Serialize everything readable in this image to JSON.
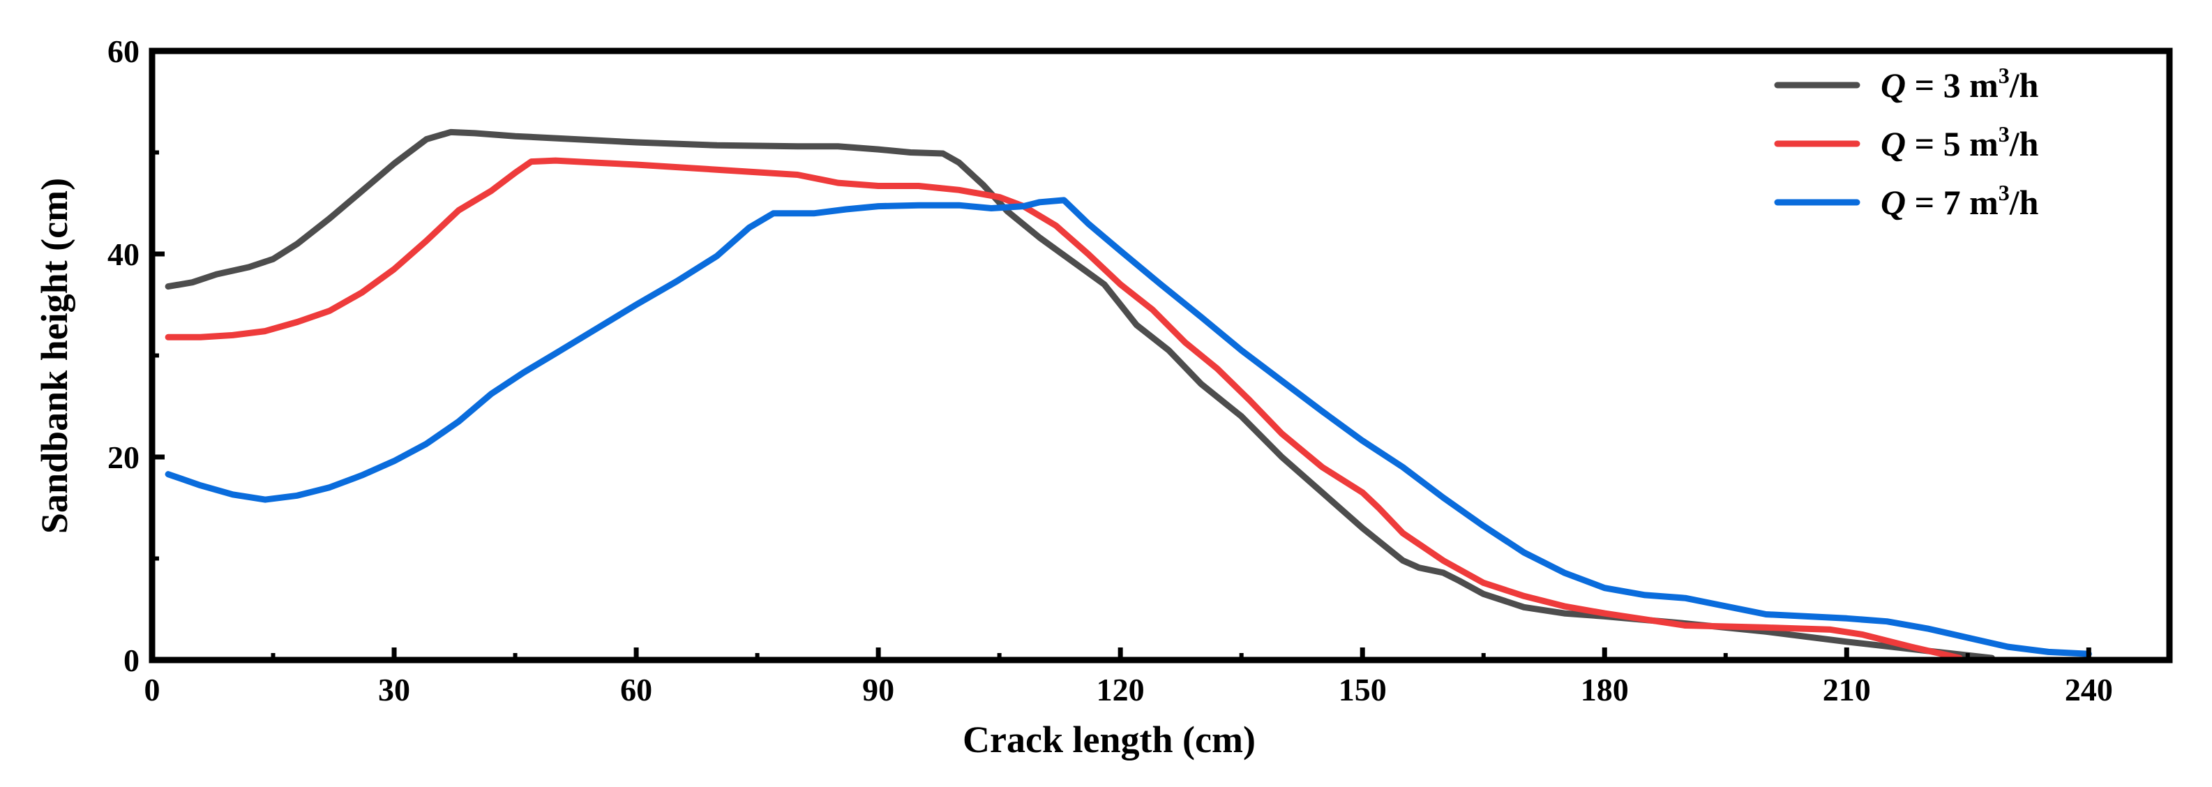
{
  "chart_data": {
    "type": "line",
    "title": "",
    "xlabel": "Crack length (cm)",
    "ylabel": "Sandbank height (cm)",
    "xlim": [
      0,
      250
    ],
    "ylim": [
      0,
      60
    ],
    "xticks": [
      0,
      30,
      60,
      90,
      120,
      150,
      180,
      210,
      240
    ],
    "yticks": [
      0,
      20,
      40,
      60
    ],
    "x_minor_ticks": [
      15,
      45,
      75,
      105,
      135,
      165,
      195,
      225
    ],
    "y_minor_ticks": [
      10,
      30,
      50
    ],
    "legend_position": "top-right",
    "series": [
      {
        "name": "Q = 3 m³/h",
        "label_q": "Q",
        "label_mid": " = 3 m",
        "label_sup": "3",
        "label_end": "/h",
        "color": "#4d4d4d",
        "points": [
          [
            2,
            36.8
          ],
          [
            5,
            37.2
          ],
          [
            8,
            38.0
          ],
          [
            12,
            38.7
          ],
          [
            15,
            39.5
          ],
          [
            18,
            41.0
          ],
          [
            22,
            43.5
          ],
          [
            26,
            46.2
          ],
          [
            30,
            48.9
          ],
          [
            34,
            51.3
          ],
          [
            37,
            52.0
          ],
          [
            40,
            51.9
          ],
          [
            45,
            51.6
          ],
          [
            50,
            51.4
          ],
          [
            60,
            51.0
          ],
          [
            70,
            50.7
          ],
          [
            80,
            50.6
          ],
          [
            85,
            50.6
          ],
          [
            90,
            50.3
          ],
          [
            94,
            50.0
          ],
          [
            98,
            49.9
          ],
          [
            100,
            49.0
          ],
          [
            103,
            46.8
          ],
          [
            106,
            44.2
          ],
          [
            110,
            41.6
          ],
          [
            114,
            39.3
          ],
          [
            118,
            37.0
          ],
          [
            120,
            35.0
          ],
          [
            122,
            33.0
          ],
          [
            126,
            30.5
          ],
          [
            130,
            27.2
          ],
          [
            135,
            24.0
          ],
          [
            140,
            20.0
          ],
          [
            145,
            16.5
          ],
          [
            150,
            13.0
          ],
          [
            155,
            9.8
          ],
          [
            157,
            9.1
          ],
          [
            160,
            8.6
          ],
          [
            162,
            7.8
          ],
          [
            165,
            6.5
          ],
          [
            170,
            5.2
          ],
          [
            175,
            4.6
          ],
          [
            180,
            4.3
          ],
          [
            190,
            3.6
          ],
          [
            200,
            2.8
          ],
          [
            210,
            1.8
          ],
          [
            220,
            0.9
          ],
          [
            228,
            0.2
          ]
        ]
      },
      {
        "name": "Q = 5 m³/h",
        "label_q": "Q",
        "label_mid": " = 5 m",
        "label_sup": "3",
        "label_end": "/h",
        "color": "#ee3b3b",
        "points": [
          [
            2,
            31.8
          ],
          [
            6,
            31.8
          ],
          [
            10,
            32.0
          ],
          [
            14,
            32.4
          ],
          [
            18,
            33.3
          ],
          [
            22,
            34.4
          ],
          [
            26,
            36.2
          ],
          [
            30,
            38.5
          ],
          [
            34,
            41.3
          ],
          [
            38,
            44.3
          ],
          [
            42,
            46.2
          ],
          [
            45,
            48.0
          ],
          [
            47,
            49.1
          ],
          [
            50,
            49.2
          ],
          [
            55,
            49.0
          ],
          [
            60,
            48.8
          ],
          [
            70,
            48.3
          ],
          [
            80,
            47.8
          ],
          [
            85,
            47.0
          ],
          [
            90,
            46.7
          ],
          [
            95,
            46.7
          ],
          [
            100,
            46.3
          ],
          [
            105,
            45.6
          ],
          [
            108,
            44.7
          ],
          [
            112,
            42.8
          ],
          [
            116,
            40.0
          ],
          [
            120,
            37.0
          ],
          [
            124,
            34.5
          ],
          [
            128,
            31.3
          ],
          [
            132,
            28.7
          ],
          [
            136,
            25.6
          ],
          [
            140,
            22.3
          ],
          [
            145,
            19.0
          ],
          [
            150,
            16.5
          ],
          [
            152,
            15.0
          ],
          [
            155,
            12.5
          ],
          [
            160,
            9.8
          ],
          [
            165,
            7.6
          ],
          [
            170,
            6.3
          ],
          [
            175,
            5.3
          ],
          [
            180,
            4.6
          ],
          [
            190,
            3.4
          ],
          [
            200,
            3.2
          ],
          [
            208,
            3.0
          ],
          [
            212,
            2.5
          ],
          [
            218,
            1.3
          ],
          [
            224,
            0.2
          ]
        ]
      },
      {
        "name": "Q = 7 m³/h",
        "label_q": "Q",
        "label_mid": " = 7 m",
        "label_sup": "3",
        "label_end": "/h",
        "color": "#0a6cdc",
        "points": [
          [
            2,
            18.3
          ],
          [
            6,
            17.2
          ],
          [
            10,
            16.3
          ],
          [
            14,
            15.8
          ],
          [
            18,
            16.2
          ],
          [
            22,
            17.0
          ],
          [
            26,
            18.2
          ],
          [
            30,
            19.6
          ],
          [
            34,
            21.3
          ],
          [
            38,
            23.5
          ],
          [
            42,
            26.2
          ],
          [
            46,
            28.3
          ],
          [
            50,
            30.2
          ],
          [
            55,
            32.6
          ],
          [
            60,
            35.0
          ],
          [
            65,
            37.3
          ],
          [
            70,
            39.8
          ],
          [
            74,
            42.6
          ],
          [
            77,
            44.0
          ],
          [
            82,
            44.0
          ],
          [
            86,
            44.4
          ],
          [
            90,
            44.7
          ],
          [
            95,
            44.8
          ],
          [
            100,
            44.8
          ],
          [
            104,
            44.5
          ],
          [
            108,
            44.7
          ],
          [
            110,
            45.1
          ],
          [
            113,
            45.3
          ],
          [
            116,
            43.0
          ],
          [
            120,
            40.3
          ],
          [
            125,
            37.0
          ],
          [
            130,
            33.8
          ],
          [
            135,
            30.5
          ],
          [
            140,
            27.5
          ],
          [
            145,
            24.5
          ],
          [
            150,
            21.6
          ],
          [
            155,
            19.0
          ],
          [
            160,
            16.0
          ],
          [
            165,
            13.2
          ],
          [
            170,
            10.6
          ],
          [
            175,
            8.6
          ],
          [
            180,
            7.1
          ],
          [
            185,
            6.4
          ],
          [
            190,
            6.1
          ],
          [
            195,
            5.3
          ],
          [
            200,
            4.5
          ],
          [
            205,
            4.3
          ],
          [
            210,
            4.1
          ],
          [
            215,
            3.8
          ],
          [
            220,
            3.1
          ],
          [
            225,
            2.2
          ],
          [
            230,
            1.3
          ],
          [
            235,
            0.8
          ],
          [
            240,
            0.6
          ]
        ]
      }
    ]
  }
}
